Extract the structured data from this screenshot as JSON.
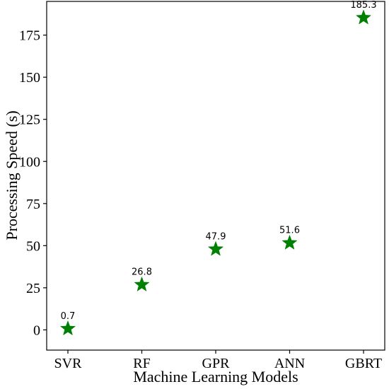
{
  "chart_data": {
    "type": "scatter",
    "title": "",
    "xlabel": "Machine Learning Models",
    "ylabel": "Processing Speed (s)",
    "categories": [
      "SVR",
      "RF",
      "GPR",
      "ANN",
      "GBRT"
    ],
    "values": [
      0.7,
      26.8,
      47.9,
      51.6,
      185.3
    ],
    "data_labels": [
      "0.7",
      "26.8",
      "47.9",
      "51.6",
      "185.3"
    ],
    "y_ticks": [
      0,
      25,
      50,
      75,
      100,
      125,
      150,
      175
    ],
    "ylim": [
      -12,
      195
    ],
    "marker": "star",
    "marker_color": "#008000",
    "grid": false,
    "legend": "none"
  }
}
